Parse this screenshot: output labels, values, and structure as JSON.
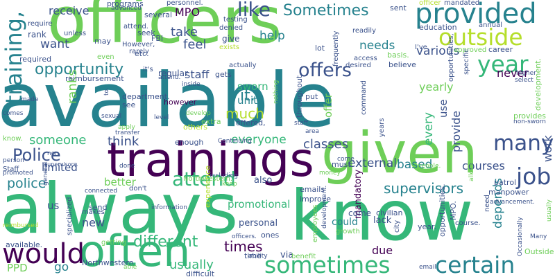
{
  "colors": {
    "background": "#ffffff",
    "palette": [
      "#440154",
      "#3b528b",
      "#26828e",
      "#35b779",
      "#6ece58",
      "#b5de2b",
      "#fde725"
    ]
  },
  "words": [
    {
      "text": "available",
      "color": "#26828e"
    },
    {
      "text": "always",
      "color": "#35b779"
    },
    {
      "text": "know",
      "color": "#35b779"
    },
    {
      "text": "officers",
      "color": "#6ece58"
    },
    {
      "text": "trainings",
      "color": "#440154"
    },
    {
      "text": "given",
      "color": "#6ece58"
    },
    {
      "text": "often",
      "color": "#35b779"
    },
    {
      "text": "would",
      "color": "#440154"
    },
    {
      "text": "provided",
      "color": "#26828e"
    },
    {
      "text": "sometimes",
      "color": "#35b779"
    },
    {
      "text": "certain",
      "color": "#26828e"
    },
    {
      "text": "year",
      "color": "#35b779"
    },
    {
      "text": "outside",
      "color": "#b5de2b"
    },
    {
      "text": "training,",
      "color": "#26828e"
    },
    {
      "text": "opportunity",
      "color": "#26828e"
    },
    {
      "text": "Sometimes",
      "color": "#26828e"
    },
    {
      "text": "like",
      "color": "#3b528b"
    },
    {
      "text": "offers",
      "color": "#3b528b"
    },
    {
      "text": "job",
      "color": "#3b528b"
    },
    {
      "text": "many",
      "color": "#3b528b"
    },
    {
      "text": "attend",
      "color": "#35b779"
    },
    {
      "text": "Police",
      "color": "#3b528b"
    },
    {
      "text": "police",
      "color": "#26828e"
    },
    {
      "text": "supervisors",
      "color": "#26828e"
    },
    {
      "text": "different",
      "color": "#35b779"
    },
    {
      "text": "times",
      "color": "#440154"
    },
    {
      "text": "usually",
      "color": "#35b779"
    },
    {
      "text": "classes",
      "color": "#3b528b"
    },
    {
      "text": "everyone",
      "color": "#35b779"
    },
    {
      "text": "think",
      "color": "#3b528b"
    },
    {
      "text": "someone",
      "color": "#35b779"
    },
    {
      "text": "external",
      "color": "#3b528b"
    },
    {
      "text": "based",
      "color": "#26828e"
    },
    {
      "text": "courses",
      "color": "#3b528b"
    },
    {
      "text": "ranks",
      "color": "#6ece58"
    },
    {
      "text": "much",
      "color": "#b5de2b"
    },
    {
      "text": "it.",
      "color": "#26828e"
    },
    {
      "text": "take",
      "color": "#3b528b"
    },
    {
      "text": "feel",
      "color": "#3b528b"
    },
    {
      "text": "help",
      "color": "#26828e"
    },
    {
      "text": "needs",
      "color": "#26828e"
    },
    {
      "text": "various",
      "color": "#3b528b"
    },
    {
      "text": "yearly",
      "color": "#6ece58"
    },
    {
      "text": "never",
      "color": "#440154"
    },
    {
      "text": "sworn",
      "color": "#35b779"
    },
    {
      "text": "unit",
      "color": "#26828e"
    },
    {
      "text": "staff",
      "color": "#3b528b"
    },
    {
      "text": "receive",
      "color": "#3b528b"
    },
    {
      "text": "want",
      "color": "#3b528b"
    },
    {
      "text": "MPO",
      "color": "#440154"
    },
    {
      "text": "better",
      "color": "#6ece58"
    },
    {
      "text": "limited",
      "color": "#3b528b"
    },
    {
      "text": "promotional",
      "color": "#35b779"
    },
    {
      "text": "due",
      "color": "#440154"
    },
    {
      "text": "new",
      "color": "#3b528b"
    },
    {
      "text": "go",
      "color": "#26828e"
    },
    {
      "text": "PPD",
      "color": "#6ece58"
    },
    {
      "text": "personal",
      "color": "#3b528b"
    },
    {
      "text": "could",
      "color": "#26828e"
    },
    {
      "text": "us",
      "color": "#3b528b"
    },
    {
      "text": "every",
      "color": "#35b779"
    },
    {
      "text": "depends",
      "color": "#26828e"
    },
    {
      "text": "work",
      "color": "#3b528b"
    },
    {
      "text": "provide",
      "color": "#3b528b"
    },
    {
      "text": "offer",
      "color": "#6ece58"
    },
    {
      "text": "use",
      "color": "#3b528b"
    },
    {
      "text": "regular",
      "color": "#3b528b"
    },
    {
      "text": "required",
      "color": "#3b528b"
    },
    {
      "text": "mandatory",
      "color": "#440154"
    },
    {
      "text": "come",
      "color": "#3b528b"
    },
    {
      "text": "lack",
      "color": "#3b528b"
    },
    {
      "text": "via",
      "color": "#3b528b"
    },
    {
      "text": "also",
      "color": "#3b528b"
    },
    {
      "text": "extra",
      "color": "#6ece58"
    },
    {
      "text": "programs",
      "color": "#3b528b"
    },
    {
      "text": "several",
      "color": "#3b528b"
    },
    {
      "text": "rank",
      "color": "#3b528b"
    },
    {
      "text": "seek",
      "color": "#3b528b"
    },
    {
      "text": "give",
      "color": "#3b528b"
    },
    {
      "text": "lot",
      "color": "#3b528b"
    },
    {
      "text": "etc.",
      "color": "#3b528b"
    },
    {
      "text": "may",
      "color": "#3b528b"
    },
    {
      "text": "rarely",
      "color": "#3b528b"
    },
    {
      "text": "However,",
      "color": "#3b528b"
    },
    {
      "text": "FBI",
      "color": "#3b528b"
    },
    {
      "text": "see",
      "color": "#3b528b"
    },
    {
      "text": "however",
      "color": "#440154"
    },
    {
      "text": "gets",
      "color": "#3b528b"
    },
    {
      "text": "put",
      "color": "#3b528b"
    },
    {
      "text": "believe",
      "color": "#3b528b"
    },
    {
      "text": "basis.",
      "color": "#6ece58"
    },
    {
      "text": "education",
      "color": "#3b528b"
    },
    {
      "text": "sent",
      "color": "#3b528b"
    },
    {
      "text": "readily",
      "color": "#3b528b"
    },
    {
      "text": "career",
      "color": "#3b528b"
    },
    {
      "text": "approved",
      "color": "#6ece58"
    },
    {
      "text": "enough",
      "color": "#3b528b"
    },
    {
      "text": "offered,",
      "color": "#3b528b"
    },
    {
      "text": "others",
      "color": "#b5de2b"
    },
    {
      "text": "department.",
      "color": "#3b528b"
    },
    {
      "text": "reimbursement",
      "color": "#3b528b"
    },
    {
      "text": "throughout",
      "color": "#3b528b"
    },
    {
      "text": "must",
      "color": "#3b528b"
    },
    {
      "text": "civilian",
      "color": "#3b528b"
    },
    {
      "text": "emails",
      "color": "#3b528b"
    },
    {
      "text": "improve",
      "color": "#3b528b"
    },
    {
      "text": "patrol",
      "color": "#3b528b"
    },
    {
      "text": "manpower",
      "color": "#3b528b"
    },
    {
      "text": "city",
      "color": "#3b528b"
    },
    {
      "text": "ones",
      "color": "#3b528b"
    },
    {
      "text": "time",
      "color": "#3b528b"
    },
    {
      "text": "Northwestern",
      "color": "#3b528b"
    },
    {
      "text": "difficult",
      "color": "#3b528b"
    },
    {
      "text": "getting",
      "color": "#6ece58"
    },
    {
      "text": "send",
      "color": "#3b528b"
    },
    {
      "text": "makes",
      "color": "#3b528b"
    },
    {
      "text": "available.",
      "color": "#3b528b"
    },
    {
      "text": "Staff",
      "color": "#3b528b"
    },
    {
      "text": "benefit",
      "color": "#6ece58"
    },
    {
      "text": "experience",
      "color": "#b5de2b"
    },
    {
      "text": "year.",
      "color": "#3b528b"
    },
    {
      "text": "opportunities.",
      "color": "#3b528b"
    },
    {
      "text": "MPO.",
      "color": "#3b528b"
    },
    {
      "text": "course.",
      "color": "#3b528b"
    },
    {
      "text": "development.",
      "color": "#6ece58"
    },
    {
      "text": "provides",
      "color": "#6ece58"
    },
    {
      "text": "Outside",
      "color": "#6ece58"
    },
    {
      "text": "select",
      "color": "#3b528b"
    },
    {
      "text": "higher",
      "color": "#3b528b"
    },
    {
      "text": "frequently",
      "color": "#3b528b"
    },
    {
      "text": "personnel.",
      "color": "#3b528b"
    },
    {
      "text": "testing",
      "color": "#3b528b"
    },
    {
      "text": "mandated",
      "color": "#3b528b"
    },
    {
      "text": "officer",
      "color": "#b5de2b"
    },
    {
      "text": "annual",
      "color": "#3b528b"
    },
    {
      "text": "desired",
      "color": "#3b528b"
    },
    {
      "text": "access",
      "color": "#3b528b"
    },
    {
      "text": "denied",
      "color": "#3b528b"
    },
    {
      "text": "exists",
      "color": "#b5de2b"
    },
    {
      "text": "attend.",
      "color": "#3b528b"
    },
    {
      "text": "advanced",
      "color": "#3b528b"
    },
    {
      "text": "require",
      "color": "#3b528b"
    },
    {
      "text": "unless",
      "color": "#3b528b"
    },
    {
      "text": "even",
      "color": "#6ece58"
    },
    {
      "text": "actually",
      "color": "#3b528b"
    },
    {
      "text": "it's",
      "color": "#3b528b"
    },
    {
      "text": "develop",
      "color": "#6ece58"
    },
    {
      "text": "inside",
      "color": "#3b528b"
    },
    {
      "text": "level",
      "color": "#3b528b"
    },
    {
      "text": "sexual",
      "color": "#3b528b"
    },
    {
      "text": "apply",
      "color": "#6ece58"
    },
    {
      "text": "transfer",
      "color": "#3b528b"
    },
    {
      "text": "Continuing",
      "color": "#3b528b"
    },
    {
      "text": "money",
      "color": "#6ece58"
    },
    {
      "text": "non-sworn",
      "color": "#3b528b"
    },
    {
      "text": "staff.",
      "color": "#3b528b"
    },
    {
      "text": "area",
      "color": "#3b528b"
    },
    {
      "text": "people.",
      "color": "#6ece58"
    },
    {
      "text": "specific",
      "color": "#3b528b"
    },
    {
      "text": "opportunities,",
      "color": "#3b528b"
    },
    {
      "text": "command",
      "color": "#3b528b"
    },
    {
      "text": "years",
      "color": "#3b528b"
    },
    {
      "text": "I've",
      "color": "#3b528b"
    },
    {
      "text": "including",
      "color": "#3b528b"
    },
    {
      "text": "Northwestern.",
      "color": "#6ece58"
    },
    {
      "text": "done",
      "color": "#3b528b"
    },
    {
      "text": "don't",
      "color": "#3b528b"
    },
    {
      "text": "connected",
      "color": "#3b528b"
    },
    {
      "text": "information",
      "color": "#3b528b"
    },
    {
      "text": "keep",
      "color": "#6ece58"
    },
    {
      "text": "advancement.",
      "color": "#3b528b"
    },
    {
      "text": "allows",
      "color": "#6ece58"
    },
    {
      "text": "need",
      "color": "#3b528b"
    },
    {
      "text": "growth",
      "color": "#6ece58"
    },
    {
      "text": "development.",
      "color": "#3b528b"
    },
    {
      "text": "employees",
      "color": "#6ece58"
    },
    {
      "text": "ability",
      "color": "#3b528b"
    },
    {
      "text": "officers.",
      "color": "#3b528b"
    },
    {
      "text": "able",
      "color": "#6ece58"
    },
    {
      "text": "email",
      "color": "#3b528b"
    },
    {
      "text": "Many",
      "color": "#3b528b"
    },
    {
      "text": "Occasionally",
      "color": "#3b528b"
    },
    {
      "text": "usually",
      "color": "#6ece58"
    },
    {
      "text": "general",
      "color": "#3b528b"
    },
    {
      "text": "specialized",
      "color": "#3b528b"
    },
    {
      "text": "reimbursed",
      "color": "#b5de2b"
    },
    {
      "text": "promoted",
      "color": "#3b528b"
    },
    {
      "text": "supervisors.",
      "color": "#3b528b"
    },
    {
      "text": "person",
      "color": "#3b528b"
    },
    {
      "text": "know.",
      "color": "#6ece58"
    },
    {
      "text": "comes",
      "color": "#3b528b"
    },
    {
      "text": "made",
      "color": "#3b528b"
    },
    {
      "text": "to.",
      "color": "#3b528b"
    },
    {
      "text": "non",
      "color": "#3b528b"
    },
    {
      "text": "nothing",
      "color": "#6ece58"
    },
    {
      "text": "attend.",
      "color": "#3b528b"
    },
    {
      "text": "come",
      "color": "#3b528b"
    }
  ]
}
